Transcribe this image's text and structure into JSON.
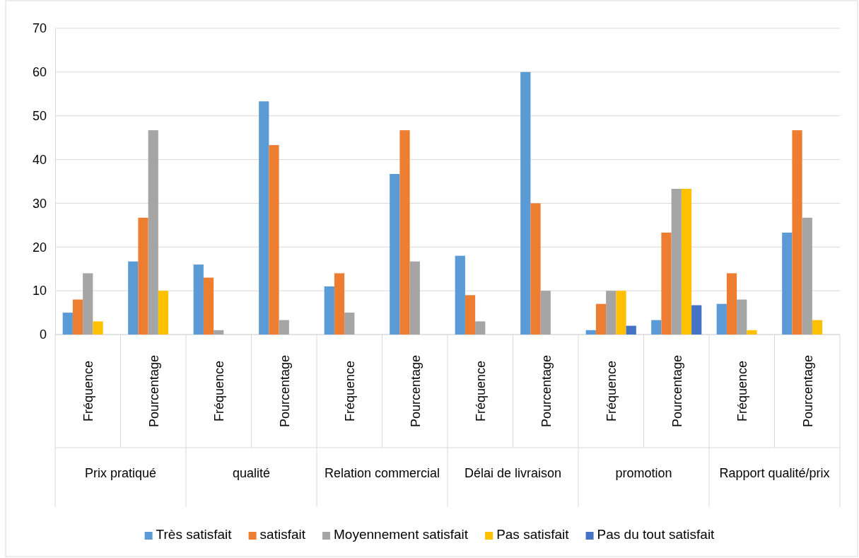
{
  "chart_data": {
    "type": "bar",
    "categories": [
      "Fréquence",
      "Pourcentage",
      "Fréquence",
      "Pourcentage",
      "Fréquence",
      "Pourcentage",
      "Fréquence",
      "Pourcentage",
      "Fréquence",
      "Pourcentage",
      "Fréquence",
      "Pourcentage"
    ],
    "annotations": [
      "Prix pratiqué",
      "qualité",
      "Relation commercial",
      "Délai de livraison",
      "promotion",
      "Rapport qualité/prix"
    ],
    "series": [
      {
        "name": "Très satisfait",
        "color": "#5b9bd5",
        "values": [
          5,
          16.7,
          16,
          53.3,
          11,
          36.7,
          18,
          60,
          1,
          3.3,
          7,
          23.3
        ]
      },
      {
        "name": "satisfait",
        "color": "#ed7d31",
        "values": [
          8,
          26.7,
          13,
          43.3,
          14,
          46.7,
          9,
          30,
          7,
          23.3,
          14,
          46.7
        ]
      },
      {
        "name": "Moyennement satisfait",
        "color": "#a5a5a5",
        "values": [
          14,
          46.7,
          1,
          3.3,
          5,
          16.7,
          3,
          10,
          10,
          33.3,
          8,
          26.7
        ]
      },
      {
        "name": "Pas satisfait",
        "color": "#ffc000",
        "values": [
          3,
          10,
          0,
          0,
          0,
          0,
          0,
          0,
          10,
          33.3,
          1,
          3.3
        ]
      },
      {
        "name": "Pas du tout satisfait",
        "color": "#4472c4",
        "values": [
          0,
          0,
          0,
          0,
          0,
          0,
          0,
          0,
          2,
          6.7,
          0,
          0
        ]
      }
    ],
    "ylim": [
      0,
      70
    ],
    "yticks": [
      0,
      10,
      20,
      30,
      40,
      50,
      60,
      70
    ],
    "grid": "y",
    "legend": "bottom"
  }
}
